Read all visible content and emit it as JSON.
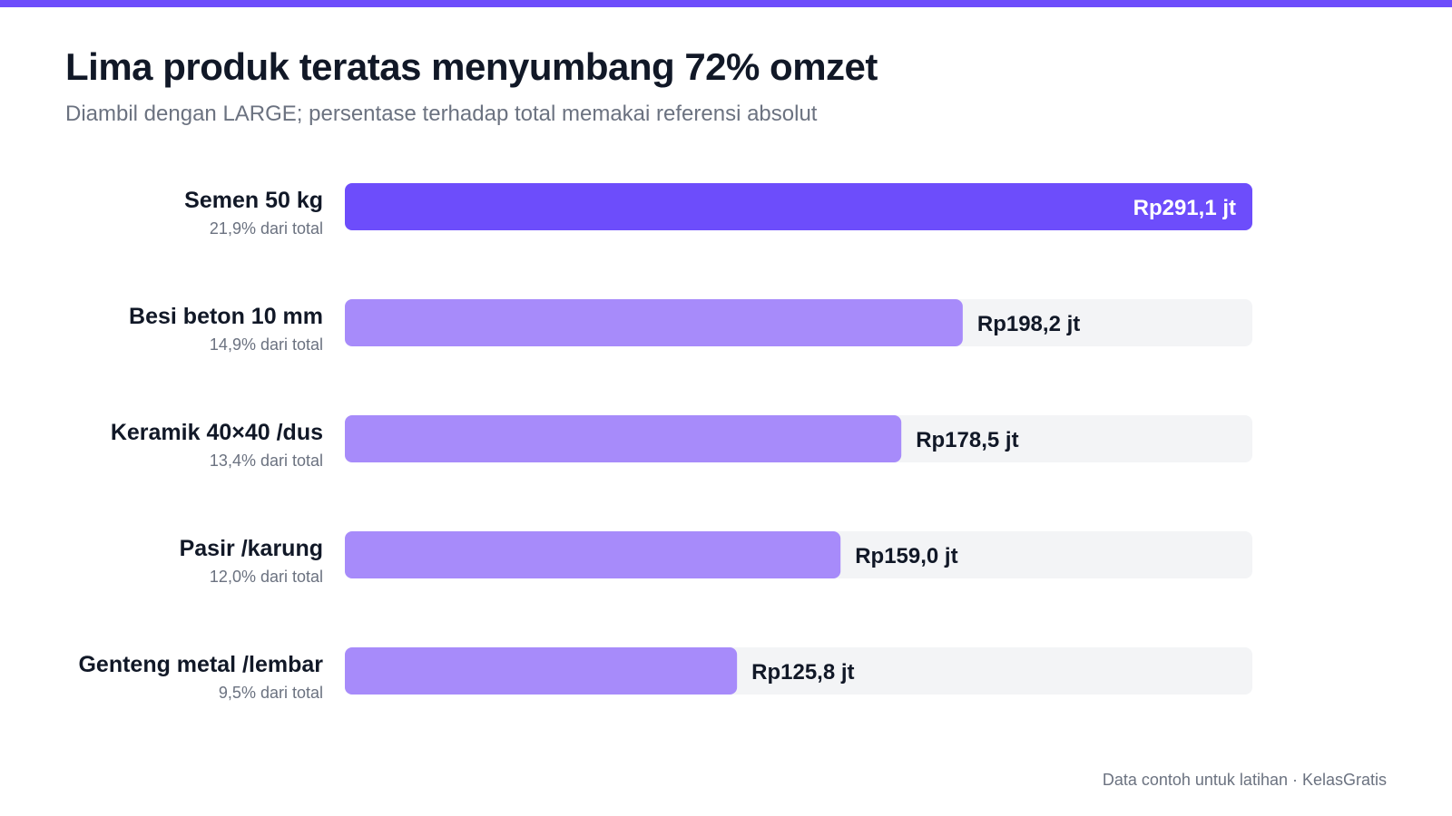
{
  "colors": {
    "accent": "#6d4dfb",
    "primary_bar": "#6d4dfb",
    "secondary_bar": "#a78bfa",
    "track": "#f3f4f6",
    "text_dark": "#111827",
    "text_muted": "#6b7280",
    "label_on_bar": "#ffffff"
  },
  "header": {
    "title": "Lima produk teratas menyumbang 72% omzet",
    "subtitle": "Diambil dengan LARGE; persentase terhadap total memakai referensi absolut"
  },
  "footer": {
    "note": "Data contoh untuk latihan · KelasGratis"
  },
  "chart_data": {
    "type": "bar",
    "orientation": "horizontal",
    "title": "Lima produk teratas menyumbang 72% omzet",
    "subtitle": "Diambil dengan LARGE; persentase terhadap total memakai referensi absolut",
    "xlabel": "",
    "ylabel": "",
    "xlim": [
      0,
      291.1
    ],
    "grid": false,
    "unit": "Rp juta",
    "categories": [
      "Semen 50 kg",
      "Besi beton 10 mm",
      "Keramik 40×40 /dus",
      "Pasir /karung",
      "Genteng metal /lembar"
    ],
    "values": [
      291.1,
      198.2,
      178.5,
      159.0,
      125.8
    ],
    "value_labels": [
      "Rp291,1 jt",
      "Rp198,2 jt",
      "Rp178,5 jt",
      "Rp159,0 jt",
      "Rp125,8 jt"
    ],
    "share_labels": [
      "21,9% dari total",
      "14,9% dari total",
      "13,4% dari total",
      "12,0% dari total",
      "9,5% dari total"
    ],
    "highlight_index": 0
  }
}
